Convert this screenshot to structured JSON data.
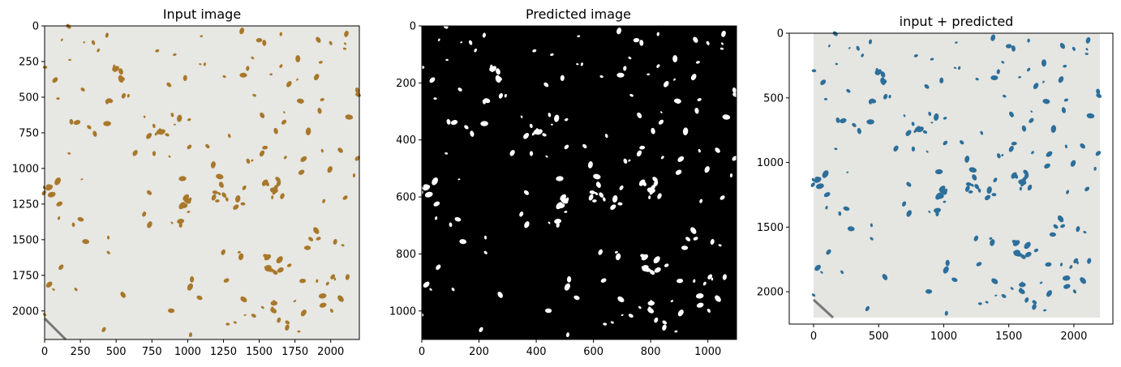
{
  "figure": {
    "panels": [
      {
        "title": "Input image",
        "x_ticks": [
          "0",
          "250",
          "500",
          "750",
          "1000",
          "1250",
          "1500",
          "1750",
          "2000"
        ],
        "y_ticks": [
          "0",
          "250",
          "500",
          "750",
          "1000",
          "1250",
          "1500",
          "1750",
          "2000"
        ],
        "background_color": "#e7e7e3",
        "blob_color": "#a8782a"
      },
      {
        "title": "Predicted image",
        "x_ticks": [
          "0",
          "200",
          "400",
          "600",
          "800",
          "1000"
        ],
        "y_ticks": [
          "0",
          "200",
          "400",
          "600",
          "800",
          "1000"
        ],
        "background_color": "#000000",
        "blob_color": "#ffffff"
      },
      {
        "title": "input + predicted",
        "x_ticks": [
          "0",
          "500",
          "1000",
          "1500",
          "2000"
        ],
        "y_ticks": [
          "0",
          "500",
          "1000",
          "1500",
          "2000"
        ],
        "background_color": "#e5e5e1",
        "blob_color": "#2c6f9a"
      }
    ]
  }
}
